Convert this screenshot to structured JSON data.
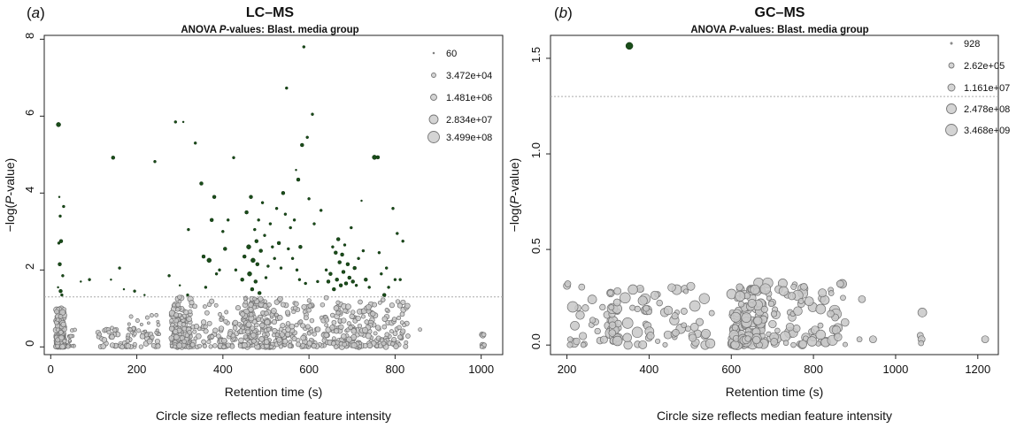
{
  "figure": {
    "caption": "Circle size reflects median feature intensity"
  },
  "chart_data": [
    {
      "type": "scatter",
      "panel_label": "(a)",
      "title": "LC–MS",
      "subtitle": "ANOVA P-values: Blast. media group",
      "xlabel": "Retention time (s)",
      "ylabel": "−log(P-value)",
      "caption": "Circle size reflects median feature intensity",
      "xlim": [
        -15,
        1050
      ],
      "ylim": [
        -0.2,
        8.1
      ],
      "xticks": [
        0,
        200,
        400,
        600,
        800,
        1000
      ],
      "yticks": [
        0,
        2,
        4,
        6,
        8
      ],
      "threshold": 1.3,
      "grid": false,
      "legend_position": "top-right",
      "legend": [
        {
          "label": "60",
          "size": 60
        },
        {
          "label": "3.472e+04",
          "size": 34720
        },
        {
          "label": "1.481e+06",
          "size": 1481000
        },
        {
          "label": "2.834e+07",
          "size": 28340000
        },
        {
          "label": "3.499e+08",
          "size": 349900000
        }
      ],
      "colors": {
        "significant": "#1a4d1a",
        "nonsignificant": "#c8c8c8",
        "threshold": "#aaaaaa"
      },
      "significant_points": [
        {
          "x": 18,
          "y": 5.78,
          "s": 2.5
        },
        {
          "x": 20,
          "y": 3.9,
          "s": 1
        },
        {
          "x": 22,
          "y": 3.4,
          "s": 1.5
        },
        {
          "x": 24,
          "y": 2.75,
          "s": 2
        },
        {
          "x": 19,
          "y": 2.7,
          "s": 1.5
        },
        {
          "x": 21,
          "y": 2.15,
          "s": 2
        },
        {
          "x": 23,
          "y": 1.45,
          "s": 2
        },
        {
          "x": 26,
          "y": 1.35,
          "s": 1.5
        },
        {
          "x": 30,
          "y": 3.65,
          "s": 1.5
        },
        {
          "x": 17,
          "y": 1.55,
          "s": 1
        },
        {
          "x": 28,
          "y": 1.85,
          "s": 1.5
        },
        {
          "x": 70,
          "y": 1.7,
          "s": 1
        },
        {
          "x": 90,
          "y": 1.75,
          "s": 1.5
        },
        {
          "x": 145,
          "y": 4.92,
          "s": 2
        },
        {
          "x": 160,
          "y": 2.05,
          "s": 1.5
        },
        {
          "x": 140,
          "y": 1.75,
          "s": 1
        },
        {
          "x": 170,
          "y": 1.5,
          "s": 1
        },
        {
          "x": 195,
          "y": 1.45,
          "s": 1.5
        },
        {
          "x": 218,
          "y": 1.35,
          "s": 1
        },
        {
          "x": 242,
          "y": 4.82,
          "s": 1.5
        },
        {
          "x": 275,
          "y": 1.85,
          "s": 1.5
        },
        {
          "x": 290,
          "y": 5.85,
          "s": 1.5
        },
        {
          "x": 308,
          "y": 5.85,
          "s": 1
        },
        {
          "x": 300,
          "y": 1.6,
          "s": 1
        },
        {
          "x": 318,
          "y": 1.35,
          "s": 1.5
        },
        {
          "x": 320,
          "y": 3.05,
          "s": 1.5
        },
        {
          "x": 336,
          "y": 5.3,
          "s": 1.5
        },
        {
          "x": 350,
          "y": 4.25,
          "s": 2
        },
        {
          "x": 355,
          "y": 2.35,
          "s": 2
        },
        {
          "x": 360,
          "y": 1.55,
          "s": 1.5
        },
        {
          "x": 368,
          "y": 2.25,
          "s": 2.5
        },
        {
          "x": 374,
          "y": 3.3,
          "s": 2
        },
        {
          "x": 380,
          "y": 3.9,
          "s": 2
        },
        {
          "x": 385,
          "y": 1.9,
          "s": 1.5
        },
        {
          "x": 392,
          "y": 2.0,
          "s": 1.5
        },
        {
          "x": 400,
          "y": 3.0,
          "s": 1.5
        },
        {
          "x": 405,
          "y": 2.55,
          "s": 2
        },
        {
          "x": 412,
          "y": 3.3,
          "s": 1.5
        },
        {
          "x": 425,
          "y": 4.92,
          "s": 1.5
        },
        {
          "x": 430,
          "y": 2.0,
          "s": 1.5
        },
        {
          "x": 445,
          "y": 1.75,
          "s": 2
        },
        {
          "x": 450,
          "y": 2.35,
          "s": 2
        },
        {
          "x": 455,
          "y": 3.5,
          "s": 2
        },
        {
          "x": 460,
          "y": 2.6,
          "s": 2.5
        },
        {
          "x": 462,
          "y": 1.9,
          "s": 2.5
        },
        {
          "x": 465,
          "y": 3.9,
          "s": 2
        },
        {
          "x": 468,
          "y": 1.5,
          "s": 2
        },
        {
          "x": 470,
          "y": 2.25,
          "s": 2.5
        },
        {
          "x": 474,
          "y": 3.05,
          "s": 1.5
        },
        {
          "x": 476,
          "y": 1.7,
          "s": 2
        },
        {
          "x": 478,
          "y": 2.75,
          "s": 2
        },
        {
          "x": 480,
          "y": 2.15,
          "s": 2
        },
        {
          "x": 483,
          "y": 3.3,
          "s": 1.5
        },
        {
          "x": 485,
          "y": 1.4,
          "s": 2
        },
        {
          "x": 488,
          "y": 2.5,
          "s": 2
        },
        {
          "x": 492,
          "y": 3.75,
          "s": 1.5
        },
        {
          "x": 497,
          "y": 2.9,
          "s": 1.5
        },
        {
          "x": 500,
          "y": 1.8,
          "s": 1.5
        },
        {
          "x": 505,
          "y": 2.1,
          "s": 1.5
        },
        {
          "x": 510,
          "y": 3.2,
          "s": 1.5
        },
        {
          "x": 515,
          "y": 2.6,
          "s": 1.5
        },
        {
          "x": 520,
          "y": 2.3,
          "s": 1.5
        },
        {
          "x": 525,
          "y": 3.6,
          "s": 1.5
        },
        {
          "x": 530,
          "y": 2.7,
          "s": 2
        },
        {
          "x": 535,
          "y": 2.05,
          "s": 1.5
        },
        {
          "x": 540,
          "y": 4.0,
          "s": 2
        },
        {
          "x": 545,
          "y": 3.45,
          "s": 1.5
        },
        {
          "x": 548,
          "y": 6.73,
          "s": 1.5
        },
        {
          "x": 552,
          "y": 2.55,
          "s": 1.5
        },
        {
          "x": 557,
          "y": 3.1,
          "s": 1.5
        },
        {
          "x": 562,
          "y": 2.3,
          "s": 1.5
        },
        {
          "x": 566,
          "y": 3.3,
          "s": 1.5
        },
        {
          "x": 570,
          "y": 4.6,
          "s": 1
        },
        {
          "x": 572,
          "y": 2.0,
          "s": 1.5
        },
        {
          "x": 575,
          "y": 4.35,
          "s": 2
        },
        {
          "x": 578,
          "y": 1.75,
          "s": 1.5
        },
        {
          "x": 580,
          "y": 2.6,
          "s": 2
        },
        {
          "x": 584,
          "y": 5.25,
          "s": 2
        },
        {
          "x": 588,
          "y": 7.8,
          "s": 1.5
        },
        {
          "x": 592,
          "y": 1.65,
          "s": 1.5
        },
        {
          "x": 596,
          "y": 5.45,
          "s": 1.5
        },
        {
          "x": 600,
          "y": 3.85,
          "s": 1.5
        },
        {
          "x": 608,
          "y": 6.05,
          "s": 1.5
        },
        {
          "x": 612,
          "y": 3.2,
          "s": 1.5
        },
        {
          "x": 620,
          "y": 1.7,
          "s": 1.5
        },
        {
          "x": 628,
          "y": 3.55,
          "s": 1.5
        },
        {
          "x": 640,
          "y": 2.0,
          "s": 1.5
        },
        {
          "x": 645,
          "y": 1.7,
          "s": 2
        },
        {
          "x": 650,
          "y": 1.9,
          "s": 2
        },
        {
          "x": 655,
          "y": 2.6,
          "s": 1.5
        },
        {
          "x": 658,
          "y": 1.5,
          "s": 2
        },
        {
          "x": 662,
          "y": 2.45,
          "s": 2
        },
        {
          "x": 665,
          "y": 1.75,
          "s": 2
        },
        {
          "x": 668,
          "y": 2.8,
          "s": 2
        },
        {
          "x": 671,
          "y": 2.2,
          "s": 2
        },
        {
          "x": 674,
          "y": 1.6,
          "s": 2
        },
        {
          "x": 677,
          "y": 2.4,
          "s": 2
        },
        {
          "x": 680,
          "y": 1.95,
          "s": 2
        },
        {
          "x": 683,
          "y": 2.65,
          "s": 1.5
        },
        {
          "x": 686,
          "y": 1.65,
          "s": 2
        },
        {
          "x": 690,
          "y": 2.15,
          "s": 2
        },
        {
          "x": 694,
          "y": 1.8,
          "s": 2
        },
        {
          "x": 698,
          "y": 3.1,
          "s": 1.5
        },
        {
          "x": 702,
          "y": 1.7,
          "s": 2
        },
        {
          "x": 706,
          "y": 2.05,
          "s": 2
        },
        {
          "x": 710,
          "y": 1.6,
          "s": 1.5
        },
        {
          "x": 715,
          "y": 2.3,
          "s": 1.5
        },
        {
          "x": 722,
          "y": 3.8,
          "s": 1
        },
        {
          "x": 726,
          "y": 2.5,
          "s": 1.5
        },
        {
          "x": 732,
          "y": 1.75,
          "s": 2
        },
        {
          "x": 740,
          "y": 1.55,
          "s": 1.5
        },
        {
          "x": 752,
          "y": 4.93,
          "s": 2.5
        },
        {
          "x": 760,
          "y": 4.93,
          "s": 2
        },
        {
          "x": 763,
          "y": 2.45,
          "s": 1.5
        },
        {
          "x": 768,
          "y": 1.9,
          "s": 1.5
        },
        {
          "x": 775,
          "y": 1.35,
          "s": 2
        },
        {
          "x": 785,
          "y": 1.55,
          "s": 1.5
        },
        {
          "x": 795,
          "y": 3.6,
          "s": 1.5
        },
        {
          "x": 800,
          "y": 1.75,
          "s": 1.5
        },
        {
          "x": 805,
          "y": 2.95,
          "s": 1.5
        },
        {
          "x": 812,
          "y": 1.75,
          "s": 1.5
        },
        {
          "x": 818,
          "y": 2.75,
          "s": 1.5
        },
        {
          "x": 780,
          "y": 2.05,
          "s": 1.5
        }
      ],
      "nonsignificant_clusters": [
        {
          "xmin": 12,
          "xmax": 32,
          "ymin": 0.0,
          "ymax": 1.0,
          "count": 150,
          "smin": 2,
          "smax": 3.2
        },
        {
          "xmin": 38,
          "xmax": 60,
          "ymin": 0.0,
          "ymax": 0.5,
          "count": 14,
          "smin": 1.5,
          "smax": 2.2
        },
        {
          "xmin": 110,
          "xmax": 250,
          "ymin": 0.0,
          "ymax": 0.5,
          "count": 60,
          "smin": 2,
          "smax": 3
        },
        {
          "xmin": 180,
          "xmax": 280,
          "ymin": 0.3,
          "ymax": 0.85,
          "count": 25,
          "smin": 1.5,
          "smax": 2.2
        },
        {
          "xmin": 280,
          "xmax": 325,
          "ymin": 0.0,
          "ymax": 1.3,
          "count": 150,
          "smin": 2,
          "smax": 3.2
        },
        {
          "xmin": 325,
          "xmax": 440,
          "ymin": 0.0,
          "ymax": 1.2,
          "count": 80,
          "smin": 2,
          "smax": 3
        },
        {
          "xmin": 440,
          "xmax": 520,
          "ymin": 0.0,
          "ymax": 1.3,
          "count": 160,
          "smin": 2,
          "smax": 3.2
        },
        {
          "xmin": 520,
          "xmax": 640,
          "ymin": 0.0,
          "ymax": 1.3,
          "count": 110,
          "smin": 2,
          "smax": 3
        },
        {
          "xmin": 640,
          "xmax": 760,
          "ymin": 0.0,
          "ymax": 1.3,
          "count": 140,
          "smin": 2,
          "smax": 3.2
        },
        {
          "xmin": 760,
          "xmax": 830,
          "ymin": 0.0,
          "ymax": 1.25,
          "count": 60,
          "smin": 2,
          "smax": 3
        }
      ],
      "nonsignificant_points": [
        {
          "x": 858,
          "y": 0.45,
          "s": 2
        },
        {
          "x": 1002,
          "y": 0.32,
          "s": 3
        },
        {
          "x": 1004,
          "y": 0.3,
          "s": 3
        },
        {
          "x": 1006,
          "y": 0.32,
          "s": 2.5
        },
        {
          "x": 1003,
          "y": 0.05,
          "s": 3
        },
        {
          "x": 1005,
          "y": 0.02,
          "s": 3
        },
        {
          "x": 1007,
          "y": 0.05,
          "s": 2.5
        },
        {
          "x": 1001,
          "y": 0.0,
          "s": 2
        }
      ]
    },
    {
      "type": "scatter",
      "panel_label": "(b)",
      "title": "GC–MS",
      "subtitle": "ANOVA P-values: Blast. media group",
      "xlabel": "Retention time (s)",
      "ylabel": "−log(P-value)",
      "caption": "Circle size reflects median feature intensity",
      "xlim": [
        160,
        1250
      ],
      "ylim": [
        -0.05,
        1.62
      ],
      "xticks": [
        200,
        400,
        600,
        800,
        1000,
        1200
      ],
      "yticks": [
        0.0,
        0.5,
        1.0,
        1.5
      ],
      "ytick_labels": [
        "0.0",
        "0.5",
        "1.0",
        "1.5"
      ],
      "threshold": 1.3,
      "grid": false,
      "legend_position": "top-right",
      "legend": [
        {
          "label": "928",
          "size": 928
        },
        {
          "label": "2.62e+05",
          "size": 262000
        },
        {
          "label": "1.161e+07",
          "size": 11610000
        },
        {
          "label": "2.478e+08",
          "size": 247800000
        },
        {
          "label": "3.468e+09",
          "size": 3468000000
        }
      ],
      "colors": {
        "significant": "#1a4d1a",
        "nonsignificant": "#c8c8c8",
        "threshold": "#aaaaaa"
      },
      "significant_points": [
        {
          "x": 352,
          "y": 1.565,
          "s": 4
        }
      ],
      "nonsignificant_clusters": [
        {
          "xmin": 195,
          "xmax": 310,
          "ymin": 0.0,
          "ymax": 0.33,
          "count": 22,
          "smin": 2.5,
          "smax": 5.5
        },
        {
          "xmin": 305,
          "xmax": 325,
          "ymin": 0.0,
          "ymax": 0.33,
          "count": 28,
          "smin": 3,
          "smax": 6
        },
        {
          "xmin": 330,
          "xmax": 560,
          "ymin": 0.0,
          "ymax": 0.33,
          "count": 60,
          "smin": 2.5,
          "smax": 6
        },
        {
          "xmin": 600,
          "xmax": 680,
          "ymin": 0.0,
          "ymax": 0.33,
          "count": 110,
          "smin": 3,
          "smax": 6
        },
        {
          "xmin": 680,
          "xmax": 880,
          "ymin": 0.0,
          "ymax": 0.33,
          "count": 80,
          "smin": 2.5,
          "smax": 6
        }
      ],
      "nonsignificant_points": [
        {
          "x": 200,
          "y": 0.31,
          "s": 4
        },
        {
          "x": 202,
          "y": 0.32,
          "s": 3.5
        },
        {
          "x": 214,
          "y": 0.2,
          "s": 6
        },
        {
          "x": 208,
          "y": 0.03,
          "s": 3
        },
        {
          "x": 918,
          "y": 0.24,
          "s": 4
        },
        {
          "x": 912,
          "y": 0.03,
          "s": 3
        },
        {
          "x": 945,
          "y": 0.03,
          "s": 4
        },
        {
          "x": 1065,
          "y": 0.17,
          "s": 5
        },
        {
          "x": 1060,
          "y": 0.05,
          "s": 3.5
        },
        {
          "x": 1063,
          "y": 0.03,
          "s": 4
        },
        {
          "x": 1062,
          "y": 0.01,
          "s": 3
        },
        {
          "x": 1218,
          "y": 0.03,
          "s": 4
        },
        {
          "x": 870,
          "y": 0.32,
          "s": 5
        },
        {
          "x": 865,
          "y": 0.32,
          "s": 4
        }
      ]
    }
  ]
}
